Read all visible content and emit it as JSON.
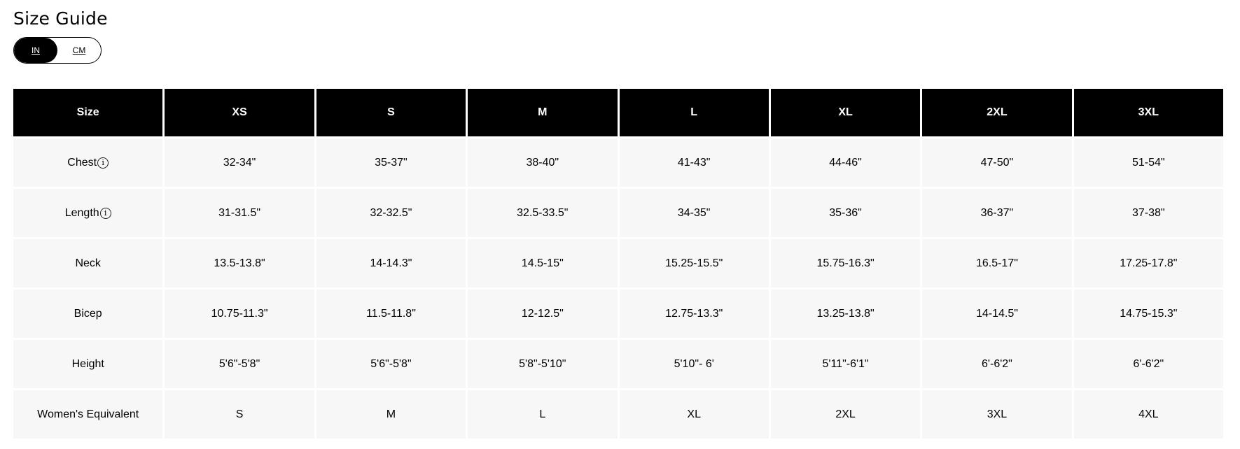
{
  "title": "Size Guide",
  "unit_toggle": {
    "options": [
      "IN",
      "CM"
    ],
    "selected": "IN"
  },
  "table": {
    "headers": [
      "Size",
      "XS",
      "S",
      "M",
      "L",
      "XL",
      "2XL",
      "3XL"
    ],
    "rows": [
      {
        "label": "Chest",
        "info": true,
        "values": [
          "32-34\"",
          "35-37\"",
          "38-40\"",
          "41-43\"",
          "44-46\"",
          "47-50\"",
          "51-54\""
        ]
      },
      {
        "label": "Length",
        "info": true,
        "values": [
          "31-31.5\"",
          "32-32.5\"",
          "32.5-33.5\"",
          "34-35\"",
          "35-36\"",
          "36-37\"",
          "37-38\""
        ]
      },
      {
        "label": "Neck",
        "info": false,
        "values": [
          "13.5-13.8\"",
          "14-14.3\"",
          "14.5-15\"",
          "15.25-15.5\"",
          "15.75-16.3\"",
          "16.5-17\"",
          "17.25-17.8\""
        ]
      },
      {
        "label": "Bicep",
        "info": false,
        "values": [
          "10.75-11.3\"",
          "11.5-11.8\"",
          "12-12.5\"",
          "12.75-13.3\"",
          "13.25-13.8\"",
          "14-14.5\"",
          "14.75-15.3\""
        ]
      },
      {
        "label": "Height",
        "info": false,
        "values": [
          "5'6\"-5'8\"",
          "5'6\"-5'8\"",
          "5'8\"-5'10\"",
          "5'10\"- 6'",
          "5'11\"-6'1\"",
          "6'-6'2\"",
          "6'-6'2\""
        ]
      },
      {
        "label": "Women's Equivalent",
        "info": false,
        "values": [
          "S",
          "M",
          "L",
          "XL",
          "2XL",
          "3XL",
          "4XL"
        ]
      }
    ]
  },
  "info_icon_glyph": "i"
}
